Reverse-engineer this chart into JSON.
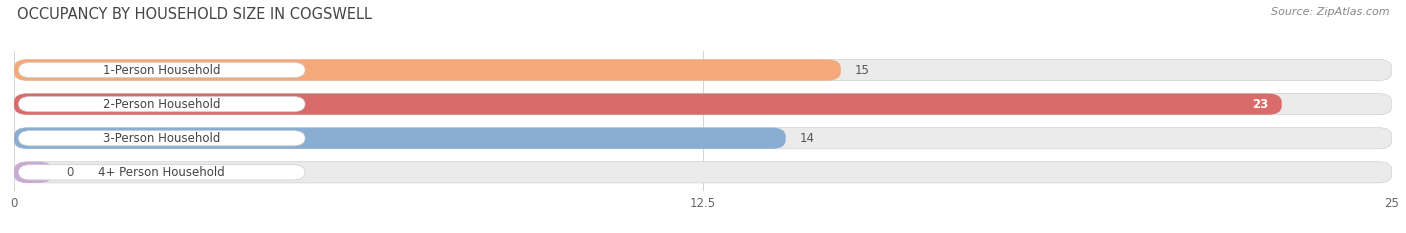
{
  "title": "OCCUPANCY BY HOUSEHOLD SIZE IN COGSWELL",
  "source": "Source: ZipAtlas.com",
  "categories": [
    "1-Person Household",
    "2-Person Household",
    "3-Person Household",
    "4+ Person Household"
  ],
  "values": [
    15,
    23,
    14,
    0
  ],
  "bar_colors": [
    "#f5a97a",
    "#d96b6b",
    "#8aadd4",
    "#c9aad4"
  ],
  "xlim": [
    0,
    25
  ],
  "xticks": [
    0,
    12.5,
    25
  ],
  "background_color": "#ffffff",
  "bar_bg_color": "#ebebeb",
  "title_fontsize": 10.5,
  "source_fontsize": 8,
  "label_fontsize": 8.5,
  "value_fontsize": 8.5,
  "value_inside_color": [
    "#ffffff",
    "#ffffff",
    "#555555",
    "#555555"
  ],
  "value_threshold": 20
}
